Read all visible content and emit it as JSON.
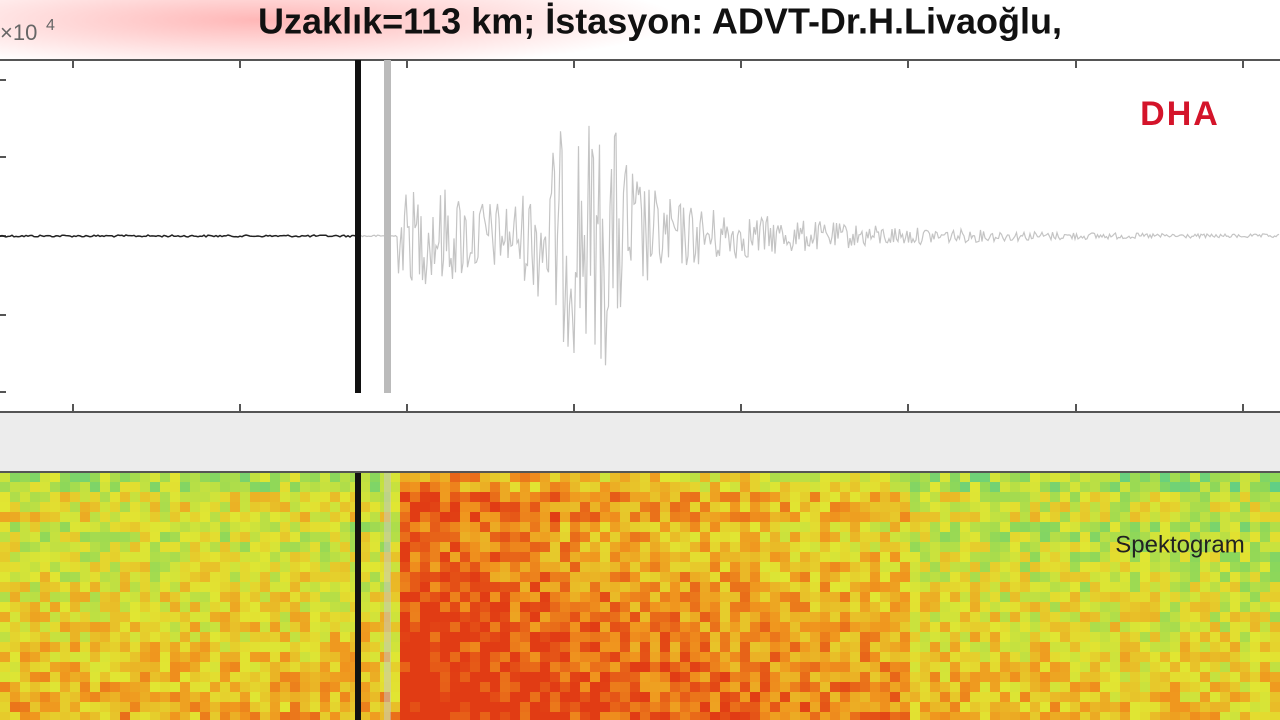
{
  "header": {
    "title": "Uzaklık=113 km; İstasyon: ADVT-Dr.H.Livaoğlu,"
  },
  "waveform_panel": {
    "scale_label": {
      "base": "×10",
      "exponent": "4"
    },
    "logo": "DHA"
  },
  "spectrogram_panel": {
    "label": "Spektogram"
  }
}
